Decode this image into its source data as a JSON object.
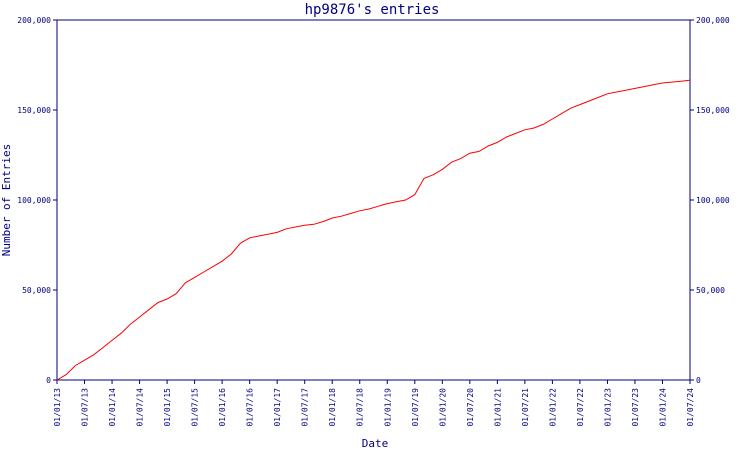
{
  "chart_data": {
    "type": "line",
    "title": "hp9876's entries",
    "xlabel": "Date",
    "ylabel": "Number of Entries",
    "ylim": [
      0,
      200000
    ],
    "y_ticks": [
      {
        "value": 0,
        "label": "0"
      },
      {
        "value": 50000,
        "label": "50,000"
      },
      {
        "value": 100000,
        "label": "100,000"
      },
      {
        "value": 150000,
        "label": "150,000"
      },
      {
        "value": 200000,
        "label": "200,000"
      }
    ],
    "x_ticks": [
      "01/01/13",
      "01/07/13",
      "01/01/14",
      "01/07/14",
      "01/01/15",
      "01/07/15",
      "01/01/16",
      "01/07/16",
      "01/01/17",
      "01/07/17",
      "01/01/18",
      "01/07/18",
      "01/01/19",
      "01/07/19",
      "01/01/20",
      "01/07/20",
      "01/01/21",
      "01/07/21",
      "01/01/22",
      "01/07/22",
      "01/01/23",
      "01/07/23",
      "01/01/24",
      "01/07/24"
    ],
    "series": [
      {
        "color": "#ff0000",
        "x": [
          "01/01/13",
          "01/03/13",
          "01/05/13",
          "01/07/13",
          "01/09/13",
          "01/11/13",
          "01/01/14",
          "01/03/14",
          "01/05/14",
          "01/07/14",
          "01/09/14",
          "01/11/14",
          "01/01/15",
          "01/03/15",
          "01/05/15",
          "01/07/15",
          "01/09/15",
          "01/11/15",
          "01/01/16",
          "01/03/16",
          "01/05/16",
          "01/07/16",
          "01/09/16",
          "01/11/16",
          "01/01/17",
          "01/03/17",
          "01/05/17",
          "01/07/17",
          "01/09/17",
          "01/11/17",
          "01/01/18",
          "01/03/18",
          "01/05/18",
          "01/07/18",
          "01/09/18",
          "01/11/18",
          "01/01/19",
          "01/03/19",
          "01/05/19",
          "01/07/19",
          "01/09/19",
          "01/11/19",
          "01/01/20",
          "01/03/20",
          "01/05/20",
          "01/07/20",
          "01/09/20",
          "01/11/20",
          "01/01/21",
          "01/03/21",
          "01/05/21",
          "01/07/21",
          "01/09/21",
          "01/11/21",
          "01/01/22",
          "01/03/22",
          "01/05/22",
          "01/07/22",
          "01/09/22",
          "01/11/22",
          "01/01/23",
          "01/03/23",
          "01/05/23",
          "01/07/23",
          "01/09/23",
          "01/11/23",
          "01/01/24",
          "01/03/24",
          "01/05/24",
          "01/07/24"
        ],
        "values": [
          0,
          3000,
          8000,
          11000,
          14000,
          18000,
          22000,
          26000,
          31000,
          35000,
          39000,
          43000,
          45000,
          48000,
          54000,
          57000,
          60000,
          63000,
          66000,
          70000,
          76000,
          79000,
          80000,
          81000,
          82000,
          84000,
          85000,
          86000,
          86500,
          88000,
          90000,
          91000,
          92500,
          94000,
          95000,
          96500,
          98000,
          99000,
          100000,
          103000,
          112000,
          114000,
          117000,
          121000,
          123000,
          126000,
          127000,
          130000,
          132000,
          135000,
          137000,
          139000,
          140000,
          142000,
          145000,
          148000,
          151000,
          153000,
          155000,
          157000,
          159000,
          160000,
          161000,
          162000,
          163000,
          164000,
          165000,
          165500,
          166000,
          166500
        ]
      }
    ]
  }
}
